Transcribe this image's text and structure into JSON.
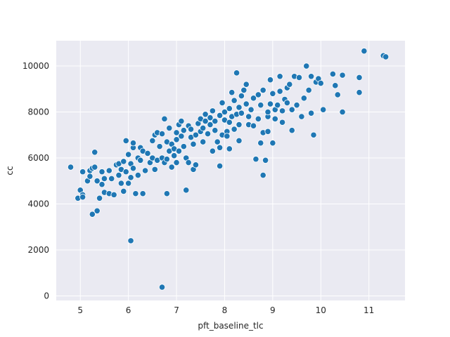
{
  "chart_data": {
    "type": "scatter",
    "xlabel": "pft_baseline_tlc",
    "ylabel": "cc",
    "xlim": [
      4.5,
      11.75
    ],
    "ylim": [
      -200,
      11100
    ],
    "xticks": [
      5,
      6,
      7,
      8,
      9,
      10,
      11
    ],
    "yticks": [
      0,
      2000,
      4000,
      6000,
      8000,
      10000
    ],
    "grid": true,
    "colors": {
      "background": "#eaeaf2",
      "grid": "#ffffff",
      "point": "#1f77b4",
      "point_edge": "#ffffff"
    },
    "points": [
      [
        4.8,
        5600
      ],
      [
        4.95,
        4250
      ],
      [
        5.0,
        4600
      ],
      [
        5.05,
        5400
      ],
      [
        5.05,
        4400
      ],
      [
        5.05,
        4300
      ],
      [
        5.15,
        5000
      ],
      [
        5.2,
        5450
      ],
      [
        5.2,
        5200
      ],
      [
        5.25,
        5550
      ],
      [
        5.25,
        3550
      ],
      [
        5.3,
        5600
      ],
      [
        5.3,
        6250
      ],
      [
        5.35,
        3700
      ],
      [
        5.35,
        5000
      ],
      [
        5.4,
        4250
      ],
      [
        5.45,
        4850
      ],
      [
        5.45,
        5400
      ],
      [
        5.5,
        5100
      ],
      [
        5.5,
        4500
      ],
      [
        5.6,
        5450
      ],
      [
        5.6,
        4450
      ],
      [
        5.65,
        5100
      ],
      [
        5.7,
        4400
      ],
      [
        5.75,
        5700
      ],
      [
        5.8,
        5250
      ],
      [
        5.8,
        5750
      ],
      [
        5.85,
        4900
      ],
      [
        5.85,
        5500
      ],
      [
        5.9,
        5850
      ],
      [
        5.9,
        4550
      ],
      [
        5.95,
        6750
      ],
      [
        5.95,
        5400
      ],
      [
        6.0,
        4900
      ],
      [
        6.0,
        6150
      ],
      [
        6.05,
        5150
      ],
      [
        6.05,
        5750
      ],
      [
        6.05,
        2400
      ],
      [
        6.1,
        6450
      ],
      [
        6.1,
        6650
      ],
      [
        6.1,
        5550
      ],
      [
        6.15,
        4450
      ],
      [
        6.2,
        5250
      ],
      [
        6.2,
        6000
      ],
      [
        6.25,
        6450
      ],
      [
        6.25,
        5900
      ],
      [
        6.3,
        4450
      ],
      [
        6.3,
        6300
      ],
      [
        6.35,
        5450
      ],
      [
        6.4,
        6200
      ],
      [
        6.45,
        5800
      ],
      [
        6.5,
        6000
      ],
      [
        6.5,
        6750
      ],
      [
        6.55,
        7000
      ],
      [
        6.55,
        5500
      ],
      [
        6.6,
        7100
      ],
      [
        6.6,
        5900
      ],
      [
        6.65,
        6500
      ],
      [
        6.7,
        7050
      ],
      [
        6.7,
        6000
      ],
      [
        6.7,
        380
      ],
      [
        6.75,
        5800
      ],
      [
        6.75,
        7700
      ],
      [
        6.8,
        6700
      ],
      [
        6.8,
        5950
      ],
      [
        6.8,
        4450
      ],
      [
        6.85,
        6300
      ],
      [
        6.85,
        7300
      ],
      [
        6.9,
        6600
      ],
      [
        6.9,
        5600
      ],
      [
        6.95,
        6100
      ],
      [
        6.95,
        6400
      ],
      [
        7.0,
        6800
      ],
      [
        7.0,
        7100
      ],
      [
        7.0,
        5800
      ],
      [
        7.05,
        6300
      ],
      [
        7.05,
        7450
      ],
      [
        7.1,
        6950
      ],
      [
        7.1,
        7600
      ],
      [
        7.15,
        6500
      ],
      [
        7.15,
        7200
      ],
      [
        7.2,
        6000
      ],
      [
        7.2,
        4600
      ],
      [
        7.25,
        5800
      ],
      [
        7.25,
        7400
      ],
      [
        7.3,
        6900
      ],
      [
        7.3,
        7250
      ],
      [
        7.35,
        5500
      ],
      [
        7.35,
        6600
      ],
      [
        7.4,
        5700
      ],
      [
        7.4,
        7000
      ],
      [
        7.45,
        7500
      ],
      [
        7.5,
        7150
      ],
      [
        7.5,
        7700
      ],
      [
        7.55,
        6700
      ],
      [
        7.55,
        7300
      ],
      [
        7.6,
        7600
      ],
      [
        7.6,
        7900
      ],
      [
        7.65,
        7050
      ],
      [
        7.7,
        7450
      ],
      [
        7.7,
        7750
      ],
      [
        7.75,
        6300
      ],
      [
        7.75,
        8050
      ],
      [
        7.8,
        7200
      ],
      [
        7.8,
        7600
      ],
      [
        7.85,
        6700
      ],
      [
        7.9,
        7850
      ],
      [
        7.9,
        5650
      ],
      [
        7.9,
        6450
      ],
      [
        7.95,
        7000
      ],
      [
        7.95,
        8400
      ],
      [
        8.0,
        7650
      ],
      [
        8.0,
        8000
      ],
      [
        8.05,
        7150
      ],
      [
        8.05,
        6950
      ],
      [
        8.1,
        7550
      ],
      [
        8.1,
        6400
      ],
      [
        8.1,
        8150
      ],
      [
        8.15,
        8850
      ],
      [
        8.15,
        7800
      ],
      [
        8.2,
        7250
      ],
      [
        8.2,
        8500
      ],
      [
        8.25,
        7900
      ],
      [
        8.25,
        9700
      ],
      [
        8.3,
        7450
      ],
      [
        8.3,
        8200
      ],
      [
        8.3,
        6750
      ],
      [
        8.35,
        8700
      ],
      [
        8.35,
        7950
      ],
      [
        8.4,
        8950
      ],
      [
        8.45,
        8350
      ],
      [
        8.45,
        9200
      ],
      [
        8.5,
        7800
      ],
      [
        8.5,
        7450
      ],
      [
        8.55,
        8100
      ],
      [
        8.6,
        8600
      ],
      [
        8.6,
        7400
      ],
      [
        8.65,
        5950
      ],
      [
        8.7,
        8750
      ],
      [
        8.7,
        7700
      ],
      [
        8.75,
        8300
      ],
      [
        8.75,
        6650
      ],
      [
        8.8,
        8950
      ],
      [
        8.8,
        7100
      ],
      [
        8.8,
        5250
      ],
      [
        8.85,
        5900
      ],
      [
        8.9,
        7800
      ],
      [
        8.9,
        8000
      ],
      [
        8.9,
        7150
      ],
      [
        8.95,
        8350
      ],
      [
        8.95,
        9400
      ],
      [
        9.0,
        8800
      ],
      [
        9.0,
        6650
      ],
      [
        9.05,
        7700
      ],
      [
        9.05,
        8100
      ],
      [
        9.1,
        8300
      ],
      [
        9.15,
        8900
      ],
      [
        9.15,
        9550
      ],
      [
        9.2,
        8050
      ],
      [
        9.2,
        7550
      ],
      [
        9.25,
        8550
      ],
      [
        9.3,
        9050
      ],
      [
        9.3,
        8400
      ],
      [
        9.35,
        9200
      ],
      [
        9.4,
        8100
      ],
      [
        9.4,
        7200
      ],
      [
        9.45,
        9550
      ],
      [
        9.5,
        8300
      ],
      [
        9.55,
        9500
      ],
      [
        9.6,
        7800
      ],
      [
        9.65,
        8600
      ],
      [
        9.7,
        10000
      ],
      [
        9.75,
        8950
      ],
      [
        9.8,
        7950
      ],
      [
        9.8,
        9550
      ],
      [
        9.85,
        7000
      ],
      [
        9.9,
        9300
      ],
      [
        9.95,
        9450
      ],
      [
        10.0,
        9250
      ],
      [
        10.05,
        8100
      ],
      [
        10.25,
        9650
      ],
      [
        10.3,
        9150
      ],
      [
        10.35,
        8750
      ],
      [
        10.45,
        9600
      ],
      [
        10.45,
        8000
      ],
      [
        10.8,
        9500
      ],
      [
        10.8,
        8850
      ],
      [
        10.9,
        10650
      ],
      [
        11.3,
        10450
      ],
      [
        11.35,
        10400
      ]
    ]
  }
}
